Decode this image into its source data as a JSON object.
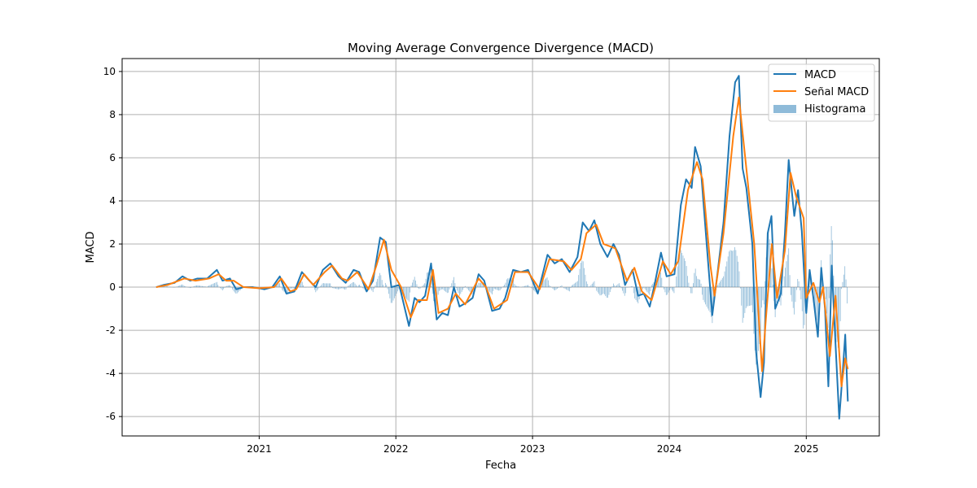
{
  "chart_data": {
    "type": "line",
    "title": "Moving Average Convergence Divergence (MACD)",
    "xlabel": "Fecha",
    "ylabel": "MACD",
    "xlim": [
      "2020-01-01",
      "2025-07-15"
    ],
    "ylim": [
      -6.9,
      10.6
    ],
    "x_ticks": [
      {
        "date": "2021-01-01",
        "label": "2021"
      },
      {
        "date": "2022-01-01",
        "label": "2022"
      },
      {
        "date": "2023-01-01",
        "label": "2023"
      },
      {
        "date": "2024-01-01",
        "label": "2024"
      },
      {
        "date": "2025-01-01",
        "label": "2025"
      }
    ],
    "y_ticks": [
      {
        "value": -6,
        "label": "-6"
      },
      {
        "value": -4,
        "label": "-4"
      },
      {
        "value": -2,
        "label": "-2"
      },
      {
        "value": 0,
        "label": "0"
      },
      {
        "value": 2,
        "label": "2"
      },
      {
        "value": 4,
        "label": "4"
      },
      {
        "value": 6,
        "label": "6"
      },
      {
        "value": 8,
        "label": "8"
      },
      {
        "value": 10,
        "label": "10"
      }
    ],
    "grid": true,
    "legend_position": "top-right",
    "colors": {
      "macd": "#1f77b4",
      "signal": "#ff7f0e",
      "histogram": "#1f77b4"
    },
    "series": [
      {
        "name": "MACD",
        "type": "line",
        "points": [
          [
            "2020-04-01",
            0.0
          ],
          [
            "2020-04-20",
            0.1
          ],
          [
            "2020-05-20",
            0.2
          ],
          [
            "2020-06-10",
            0.5
          ],
          [
            "2020-07-01",
            0.3
          ],
          [
            "2020-07-20",
            0.4
          ],
          [
            "2020-08-15",
            0.4
          ],
          [
            "2020-09-10",
            0.8
          ],
          [
            "2020-09-25",
            0.3
          ],
          [
            "2020-10-15",
            0.4
          ],
          [
            "2020-11-01",
            -0.1
          ],
          [
            "2020-11-20",
            0.0
          ],
          [
            "2020-12-15",
            0.0
          ],
          [
            "2021-01-15",
            -0.1
          ],
          [
            "2021-02-05",
            0.0
          ],
          [
            "2021-02-25",
            0.5
          ],
          [
            "2021-03-15",
            -0.3
          ],
          [
            "2021-04-05",
            -0.2
          ],
          [
            "2021-04-25",
            0.7
          ],
          [
            "2021-05-15",
            0.3
          ],
          [
            "2021-06-01",
            0.0
          ],
          [
            "2021-06-20",
            0.8
          ],
          [
            "2021-07-10",
            1.1
          ],
          [
            "2021-08-01",
            0.5
          ],
          [
            "2021-08-20",
            0.2
          ],
          [
            "2021-09-10",
            0.8
          ],
          [
            "2021-09-25",
            0.7
          ],
          [
            "2021-10-15",
            -0.2
          ],
          [
            "2021-11-01",
            0.3
          ],
          [
            "2021-11-20",
            2.3
          ],
          [
            "2021-12-05",
            2.1
          ],
          [
            "2021-12-20",
            0.0
          ],
          [
            "2022-01-10",
            0.1
          ],
          [
            "2022-01-25",
            -1.0
          ],
          [
            "2022-02-05",
            -1.8
          ],
          [
            "2022-02-20",
            -0.5
          ],
          [
            "2022-03-05",
            -0.7
          ],
          [
            "2022-03-20",
            -0.4
          ],
          [
            "2022-04-05",
            1.1
          ],
          [
            "2022-04-20",
            -1.5
          ],
          [
            "2022-05-05",
            -1.2
          ],
          [
            "2022-05-20",
            -1.3
          ],
          [
            "2022-06-05",
            0.0
          ],
          [
            "2022-06-20",
            -0.9
          ],
          [
            "2022-07-10",
            -0.7
          ],
          [
            "2022-07-25",
            -0.5
          ],
          [
            "2022-08-10",
            0.6
          ],
          [
            "2022-08-25",
            0.3
          ],
          [
            "2022-09-15",
            -1.1
          ],
          [
            "2022-10-05",
            -1.0
          ],
          [
            "2022-10-20",
            -0.5
          ],
          [
            "2022-11-10",
            0.8
          ],
          [
            "2022-12-01",
            0.7
          ],
          [
            "2022-12-20",
            0.8
          ],
          [
            "2023-01-15",
            -0.3
          ],
          [
            "2023-02-10",
            1.5
          ],
          [
            "2023-03-01",
            1.1
          ],
          [
            "2023-03-20",
            1.3
          ],
          [
            "2023-04-10",
            0.7
          ],
          [
            "2023-05-01",
            1.4
          ],
          [
            "2023-05-15",
            3.0
          ],
          [
            "2023-06-01",
            2.6
          ],
          [
            "2023-06-15",
            3.1
          ],
          [
            "2023-07-01",
            2.0
          ],
          [
            "2023-07-20",
            1.4
          ],
          [
            "2023-08-05",
            2.0
          ],
          [
            "2023-08-20",
            1.5
          ],
          [
            "2023-09-05",
            0.1
          ],
          [
            "2023-09-25",
            0.8
          ],
          [
            "2023-10-10",
            -0.4
          ],
          [
            "2023-10-25",
            -0.3
          ],
          [
            "2023-11-10",
            -0.9
          ],
          [
            "2023-11-25",
            0.3
          ],
          [
            "2023-12-10",
            1.6
          ],
          [
            "2023-12-25",
            0.5
          ],
          [
            "2024-01-15",
            0.6
          ],
          [
            "2024-02-01",
            3.8
          ],
          [
            "2024-02-15",
            5.0
          ],
          [
            "2024-03-01",
            4.6
          ],
          [
            "2024-03-10",
            6.5
          ],
          [
            "2024-03-25",
            5.6
          ],
          [
            "2024-04-10",
            2.0
          ],
          [
            "2024-04-25",
            -1.3
          ],
          [
            "2024-05-10",
            0.8
          ],
          [
            "2024-05-25",
            3.0
          ],
          [
            "2024-06-10",
            7.0
          ],
          [
            "2024-06-25",
            9.5
          ],
          [
            "2024-07-05",
            9.8
          ],
          [
            "2024-07-15",
            5.5
          ],
          [
            "2024-07-25",
            4.6
          ],
          [
            "2024-08-10",
            2.0
          ],
          [
            "2024-08-20",
            -3.0
          ],
          [
            "2024-09-01",
            -5.1
          ],
          [
            "2024-09-10",
            -3.5
          ],
          [
            "2024-09-20",
            2.5
          ],
          [
            "2024-09-30",
            3.3
          ],
          [
            "2024-10-10",
            -1.0
          ],
          [
            "2024-10-25",
            -0.3
          ],
          [
            "2024-11-05",
            2.5
          ],
          [
            "2024-11-15",
            5.9
          ],
          [
            "2024-11-30",
            3.3
          ],
          [
            "2024-12-10",
            4.5
          ],
          [
            "2024-12-20",
            2.6
          ],
          [
            "2025-01-01",
            -1.2
          ],
          [
            "2025-01-10",
            0.8
          ],
          [
            "2025-01-20",
            -0.5
          ],
          [
            "2025-02-01",
            -2.3
          ],
          [
            "2025-02-10",
            0.9
          ],
          [
            "2025-02-20",
            -1.0
          ],
          [
            "2025-03-01",
            -4.6
          ],
          [
            "2025-03-10",
            1.0
          ],
          [
            "2025-03-20",
            -2.6
          ],
          [
            "2025-03-30",
            -6.1
          ],
          [
            "2025-04-10",
            -3.5
          ],
          [
            "2025-04-15",
            -2.2
          ],
          [
            "2025-04-22",
            -5.3
          ]
        ]
      },
      {
        "name": "Señal MACD",
        "type": "line",
        "points": [
          [
            "2020-04-01",
            0.0
          ],
          [
            "2020-05-01",
            0.1
          ],
          [
            "2020-06-15",
            0.4
          ],
          [
            "2020-07-15",
            0.3
          ],
          [
            "2020-08-20",
            0.4
          ],
          [
            "2020-09-15",
            0.6
          ],
          [
            "2020-10-05",
            0.3
          ],
          [
            "2020-10-25",
            0.3
          ],
          [
            "2020-11-20",
            0.0
          ],
          [
            "2021-01-01",
            -0.05
          ],
          [
            "2021-02-10",
            0.0
          ],
          [
            "2021-03-01",
            0.4
          ],
          [
            "2021-03-25",
            -0.2
          ],
          [
            "2021-04-10",
            -0.1
          ],
          [
            "2021-05-01",
            0.6
          ],
          [
            "2021-05-25",
            0.1
          ],
          [
            "2021-06-25",
            0.7
          ],
          [
            "2021-07-15",
            1.0
          ],
          [
            "2021-08-10",
            0.4
          ],
          [
            "2021-08-25",
            0.3
          ],
          [
            "2021-09-20",
            0.7
          ],
          [
            "2021-10-20",
            -0.1
          ],
          [
            "2021-11-10",
            1.0
          ],
          [
            "2021-11-30",
            2.2
          ],
          [
            "2021-12-20",
            0.8
          ],
          [
            "2022-01-15",
            0.0
          ],
          [
            "2022-02-10",
            -1.4
          ],
          [
            "2022-03-01",
            -0.6
          ],
          [
            "2022-03-25",
            -0.6
          ],
          [
            "2022-04-10",
            0.8
          ],
          [
            "2022-04-25",
            -1.2
          ],
          [
            "2022-05-20",
            -1.0
          ],
          [
            "2022-06-10",
            -0.3
          ],
          [
            "2022-07-05",
            -0.8
          ],
          [
            "2022-08-10",
            0.4
          ],
          [
            "2022-08-30",
            0.0
          ],
          [
            "2022-09-20",
            -1.0
          ],
          [
            "2022-10-25",
            -0.6
          ],
          [
            "2022-11-15",
            0.7
          ],
          [
            "2022-12-20",
            0.7
          ],
          [
            "2023-01-20",
            -0.1
          ],
          [
            "2023-02-15",
            1.3
          ],
          [
            "2023-03-25",
            1.2
          ],
          [
            "2023-04-15",
            0.8
          ],
          [
            "2023-05-10",
            1.3
          ],
          [
            "2023-05-25",
            2.5
          ],
          [
            "2023-06-20",
            2.9
          ],
          [
            "2023-07-10",
            2.0
          ],
          [
            "2023-08-10",
            1.8
          ],
          [
            "2023-09-10",
            0.3
          ],
          [
            "2023-09-30",
            0.9
          ],
          [
            "2023-10-20",
            -0.2
          ],
          [
            "2023-11-15",
            -0.6
          ],
          [
            "2023-12-15",
            1.2
          ],
          [
            "2024-01-05",
            0.6
          ],
          [
            "2024-01-25",
            1.2
          ],
          [
            "2024-02-20",
            4.5
          ],
          [
            "2024-03-15",
            5.8
          ],
          [
            "2024-03-30",
            5.0
          ],
          [
            "2024-04-20",
            1.0
          ],
          [
            "2024-05-01",
            -0.4
          ],
          [
            "2024-05-25",
            2.5
          ],
          [
            "2024-06-20",
            7.0
          ],
          [
            "2024-07-05",
            8.8
          ],
          [
            "2024-07-25",
            5.5
          ],
          [
            "2024-08-15",
            2.0
          ],
          [
            "2024-09-05",
            -3.9
          ],
          [
            "2024-09-15",
            -1.5
          ],
          [
            "2024-10-01",
            2.0
          ],
          [
            "2024-10-15",
            -0.5
          ],
          [
            "2024-11-05",
            1.7
          ],
          [
            "2024-11-20",
            5.3
          ],
          [
            "2024-12-05",
            4.2
          ],
          [
            "2024-12-25",
            3.2
          ],
          [
            "2025-01-01",
            -0.5
          ],
          [
            "2025-01-20",
            0.2
          ],
          [
            "2025-02-05",
            -0.7
          ],
          [
            "2025-02-15",
            0.0
          ],
          [
            "2025-03-05",
            -3.2
          ],
          [
            "2025-03-20",
            -0.4
          ],
          [
            "2025-04-05",
            -4.6
          ],
          [
            "2025-04-15",
            -3.3
          ],
          [
            "2025-04-22",
            -3.8
          ]
        ]
      },
      {
        "name": "Histograma",
        "type": "bar"
      }
    ],
    "histogram_note_values_derived": "MACD minus Señal MACD"
  }
}
